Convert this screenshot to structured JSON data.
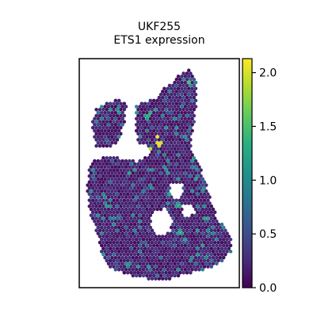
{
  "chart_data": {
    "type": "scatter",
    "title_lines": [
      "UKF255",
      "ETS1 expression"
    ],
    "colormap": "viridis",
    "colorbar": {
      "vmin": 0.0,
      "vmax": 2.13,
      "ticks": [
        0.0,
        0.5,
        1.0,
        1.5,
        2.0
      ],
      "tick_labels": [
        "0.0",
        "0.5",
        "1.0",
        "1.5",
        "2.0"
      ]
    },
    "axes": {
      "x_ticks": false,
      "y_ticks": false,
      "grid": false,
      "xlabel": "",
      "ylabel": ""
    },
    "expression_summary": {
      "background_level": 0.05,
      "bright_spots": [
        {
          "x": 0.25,
          "y": 0.93,
          "value": 1.1
        },
        {
          "x": 0.27,
          "y": 0.85,
          "value": 1.0
        },
        {
          "x": 0.28,
          "y": 0.6,
          "value": 1.4
        },
        {
          "x": 0.36,
          "y": 0.8,
          "value": 1.0
        },
        {
          "x": 0.42,
          "y": 0.75,
          "value": 1.2
        },
        {
          "x": 0.44,
          "y": 0.76,
          "value": 1.3
        },
        {
          "x": 0.48,
          "y": 0.87,
          "value": 1.0
        },
        {
          "x": 0.44,
          "y": 0.6,
          "value": 1.9
        },
        {
          "x": 0.49,
          "y": 0.66,
          "value": 2.1
        },
        {
          "x": 0.5,
          "y": 0.63,
          "value": 2.0
        },
        {
          "x": 0.54,
          "y": 0.52,
          "value": 1.0
        },
        {
          "x": 0.58,
          "y": 0.41,
          "value": 1.3
        },
        {
          "x": 0.62,
          "y": 0.36,
          "value": 1.2
        },
        {
          "x": 0.68,
          "y": 0.9,
          "value": 1.5
        },
        {
          "x": 0.71,
          "y": 0.82,
          "value": 1.0
        },
        {
          "x": 0.71,
          "y": 0.56,
          "value": 1.1
        },
        {
          "x": 0.73,
          "y": 0.47,
          "value": 1.2
        },
        {
          "x": 0.78,
          "y": 0.43,
          "value": 1.0
        },
        {
          "x": 0.8,
          "y": 0.3,
          "value": 1.2
        },
        {
          "x": 0.45,
          "y": 0.44,
          "value": 1.0
        },
        {
          "x": 0.15,
          "y": 0.4,
          "value": 1.0
        },
        {
          "x": 0.2,
          "y": 0.3,
          "value": 0.9
        },
        {
          "x": 0.35,
          "y": 0.25,
          "value": 1.0
        },
        {
          "x": 0.3,
          "y": 0.1,
          "value": 1.0
        },
        {
          "x": 0.62,
          "y": 0.08,
          "value": 1.1
        },
        {
          "x": 0.7,
          "y": 0.12,
          "value": 1.0
        },
        {
          "x": 0.63,
          "y": 0.24,
          "value": 1.2
        },
        {
          "x": 0.86,
          "y": 0.21,
          "value": 1.0
        }
      ]
    }
  }
}
